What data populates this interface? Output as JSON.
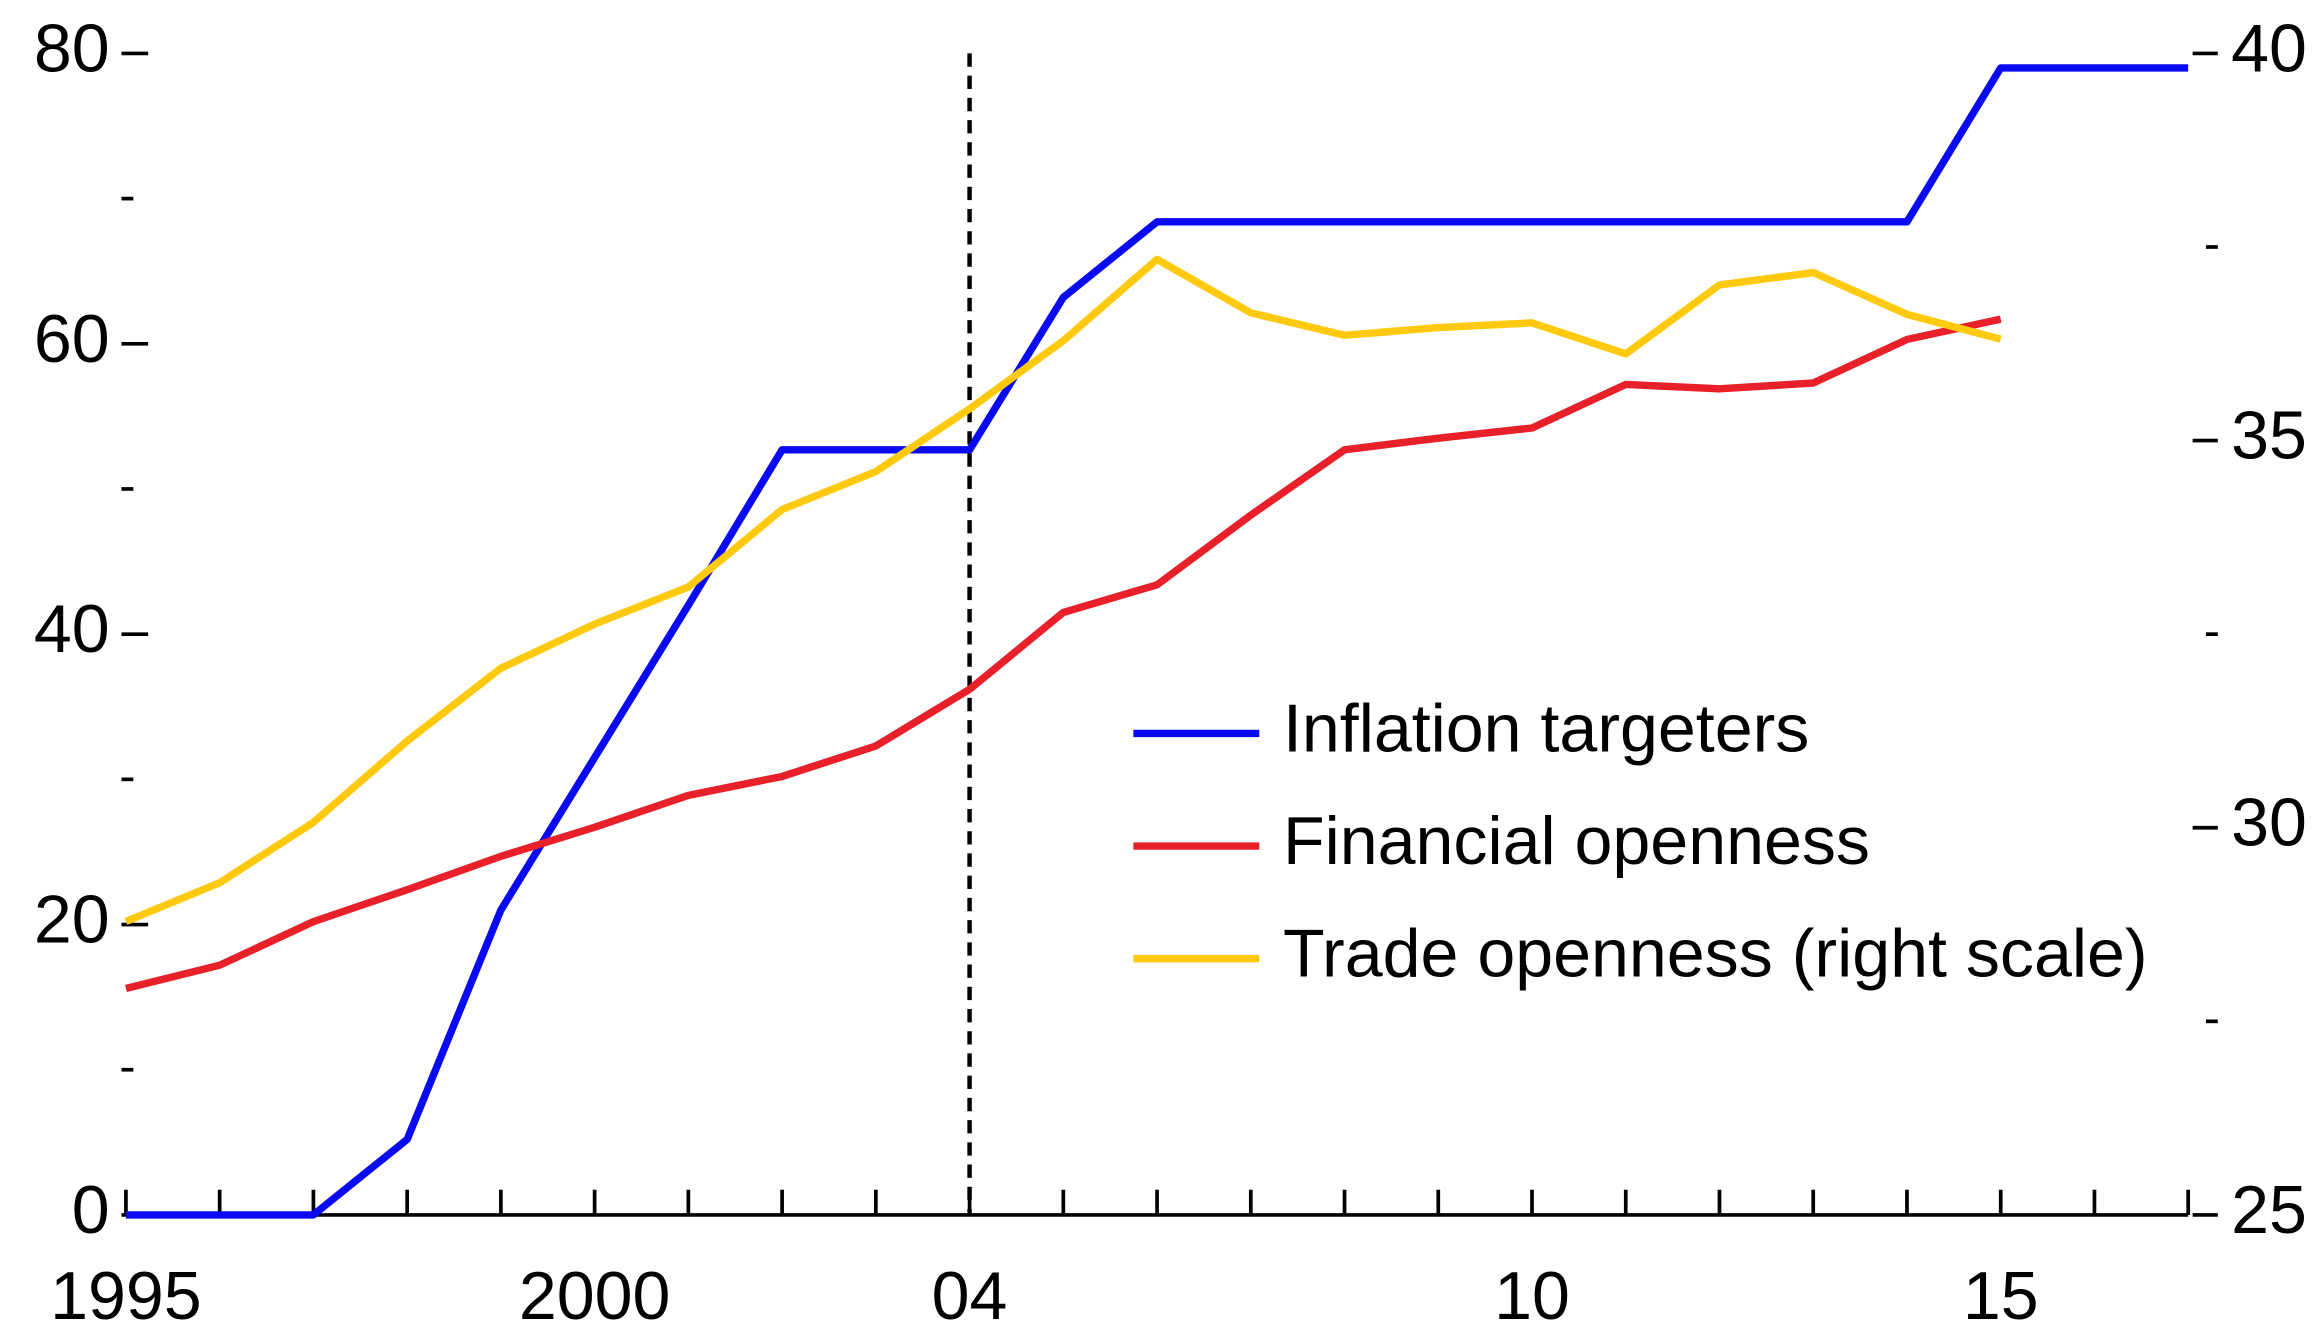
{
  "chart_data": {
    "type": "line",
    "x": [
      1995,
      1996,
      1997,
      1998,
      1999,
      2000,
      2001,
      2002,
      2003,
      2004,
      2005,
      2006,
      2007,
      2008,
      2009,
      2010,
      2011,
      2012,
      2013,
      2014,
      2015,
      2016,
      2017
    ],
    "series": [
      {
        "name": "Inflation targeters",
        "color": "#0a0af0",
        "axis": "y",
        "values": [
          0,
          0,
          0,
          5.2,
          21,
          31.5,
          42,
          52.7,
          52.7,
          52.7,
          63.2,
          68.4,
          68.4,
          68.4,
          68.4,
          68.4,
          68.4,
          68.4,
          68.4,
          68.4,
          79,
          79,
          79
        ]
      },
      {
        "name": "Financial openness",
        "color": "#e8202a",
        "axis": "y",
        "values": [
          15.6,
          17.2,
          20.2,
          22.4,
          24.7,
          26.7,
          28.9,
          30.2,
          32.3,
          36.2,
          41.5,
          43.4,
          48.2,
          52.7,
          53.5,
          54.2,
          57.2,
          56.9,
          57.3,
          60.3,
          61.7,
          null,
          null
        ]
      },
      {
        "name": "Trade openness (right scale)",
        "color": "#ffc90e",
        "axis": "y2",
        "values": [
          28.79,
          29.29,
          30.07,
          31.12,
          32.06,
          32.63,
          33.11,
          34.11,
          34.6,
          35.41,
          36.29,
          37.34,
          36.65,
          36.36,
          36.46,
          36.52,
          36.12,
          37.01,
          37.17,
          36.63,
          36.31,
          null,
          null
        ]
      }
    ],
    "xlim": [
      1995,
      2017
    ],
    "xticks": [
      1995,
      2000,
      {
        "value": 2004,
        "label": "04"
      },
      {
        "value": 2010,
        "label": "10"
      },
      {
        "value": 2015,
        "label": "15"
      }
    ],
    "xminorticks": [
      1996,
      1997,
      1998,
      1999,
      2001,
      2002,
      2003,
      2005,
      2006,
      2007,
      2008,
      2009,
      2011,
      2012,
      2013,
      2014,
      2016,
      2017
    ],
    "ylim": [
      0,
      80
    ],
    "yticks": [
      0,
      20,
      40,
      60,
      80
    ],
    "yminorticks": [
      10,
      30,
      50,
      70
    ],
    "y2lim": [
      25,
      40
    ],
    "y2ticks": [
      25,
      30,
      35,
      40
    ],
    "y2minorticks": [
      27.5,
      32.5,
      37.5
    ],
    "vline": 2004,
    "legend": "center-right"
  }
}
